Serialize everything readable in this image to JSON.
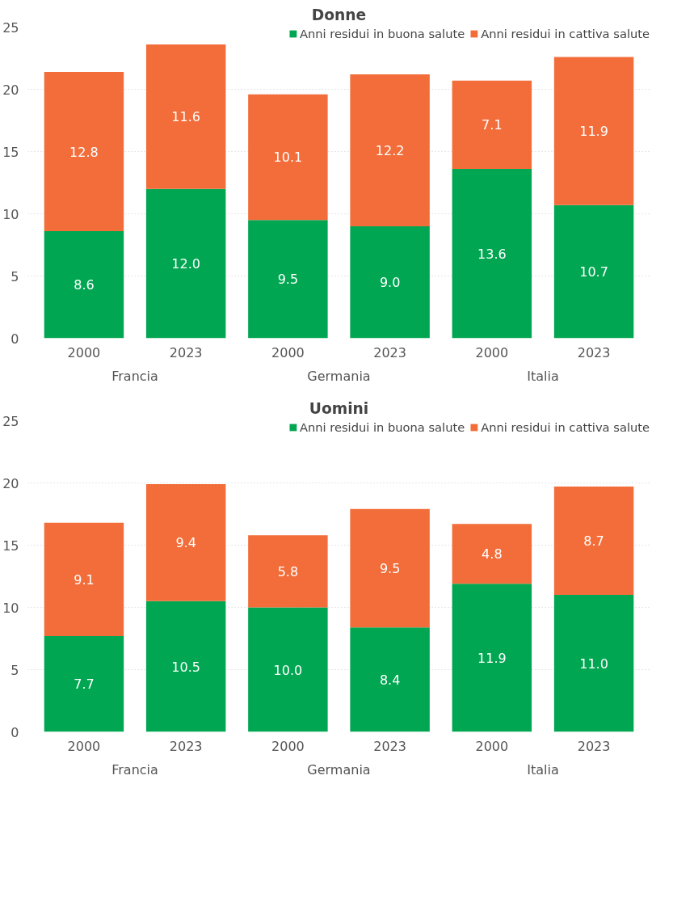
{
  "chart_data": [
    {
      "type": "bar",
      "title": "Donne",
      "stacked": true,
      "categories": [
        "2000",
        "2023",
        "2000",
        "2023",
        "2000",
        "2023"
      ],
      "annotations": [
        "Francia",
        "Germania",
        "Italia"
      ],
      "series": [
        {
          "name": "Anni residui in buona salute",
          "color": "#00a651",
          "values": [
            8.6,
            12,
            9.5,
            9,
            13.6,
            10.7
          ],
          "value_labels": [
            "8.6",
            "12.0",
            "9.5",
            "9.0",
            "13.6",
            "10.7"
          ]
        },
        {
          "name": "Anni residui in cattiva salute",
          "color": "#f26d3a",
          "values": [
            12.8,
            11.6,
            10.1,
            12.2,
            7.1,
            11.9
          ],
          "value_labels": [
            "12.8",
            "11.6",
            "10.1",
            "12.2",
            "7.1",
            "11.9"
          ]
        }
      ],
      "ylim": [
        0,
        25
      ],
      "yticks": [
        0,
        5,
        10,
        15,
        20,
        25
      ],
      "grid": "y",
      "legend": "top right",
      "data_labels": true
    },
    {
      "type": "bar",
      "title": "Uomini",
      "stacked": true,
      "categories": [
        "2000",
        "2023",
        "2000",
        "2023",
        "2000",
        "2023"
      ],
      "annotations": [
        "Francia",
        "Germania",
        "Italia"
      ],
      "series": [
        {
          "name": "Anni residui in buona salute",
          "color": "#00a651",
          "values": [
            7.7,
            10.5,
            10,
            8.4,
            11.9,
            11
          ],
          "value_labels": [
            "7.7",
            "10.5",
            "10.0",
            "8.4",
            "11.9",
            "11.0"
          ]
        },
        {
          "name": "Anni residui in cattiva salute",
          "color": "#f26d3a",
          "values": [
            9.1,
            9.4,
            5.8,
            9.5,
            4.8,
            8.7
          ],
          "value_labels": [
            "9.1",
            "9.4",
            "5.8",
            "9.5",
            "4.8",
            "8.7"
          ]
        }
      ],
      "ylim": [
        0,
        25
      ],
      "yticks": [
        0,
        5,
        10,
        15,
        20,
        25
      ],
      "grid": "y",
      "legend": "top right",
      "data_labels": true
    }
  ]
}
